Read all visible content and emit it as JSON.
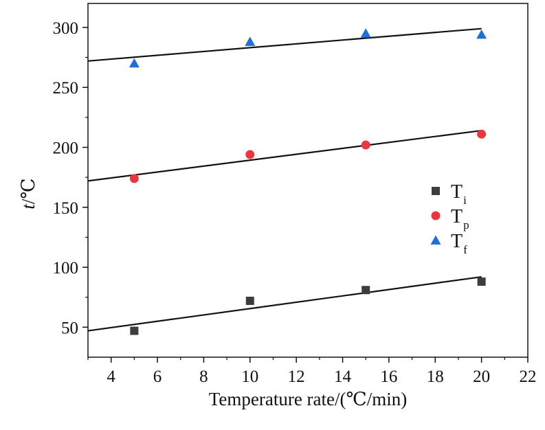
{
  "chart_data": {
    "type": "scatter",
    "title": "",
    "xlabel": "Temperature rate/(℃/min)",
    "ylabel_italic": "t",
    "ylabel_rest": "/℃",
    "xlim": [
      3,
      22
    ],
    "ylim": [
      25,
      320
    ],
    "xticks": [
      4,
      6,
      8,
      10,
      12,
      14,
      16,
      18,
      20,
      22
    ],
    "yticks": [
      50,
      100,
      150,
      200,
      250,
      300
    ],
    "grid": false,
    "legend_position": "center-right",
    "series": [
      {
        "name": "T",
        "sub": "i",
        "marker": "square",
        "color": "#3d3d3d",
        "x": [
          5,
          10,
          15,
          20
        ],
        "y": [
          47,
          72,
          81,
          88
        ],
        "fit": {
          "x": [
            3,
            20
          ],
          "y": [
            47,
            92
          ]
        }
      },
      {
        "name": "T",
        "sub": "p",
        "marker": "circle",
        "color": "#e8383d",
        "x": [
          5,
          10,
          15,
          20
        ],
        "y": [
          174,
          194,
          202,
          211
        ],
        "fit": {
          "x": [
            3,
            20
          ],
          "y": [
            172,
            214
          ]
        }
      },
      {
        "name": "T",
        "sub": "f",
        "marker": "triangle",
        "color": "#1f6fd6",
        "x": [
          5,
          10,
          15,
          20
        ],
        "y": [
          270,
          288,
          295,
          294
        ],
        "fit": {
          "x": [
            3,
            20
          ],
          "y": [
            272,
            299
          ]
        }
      }
    ]
  }
}
